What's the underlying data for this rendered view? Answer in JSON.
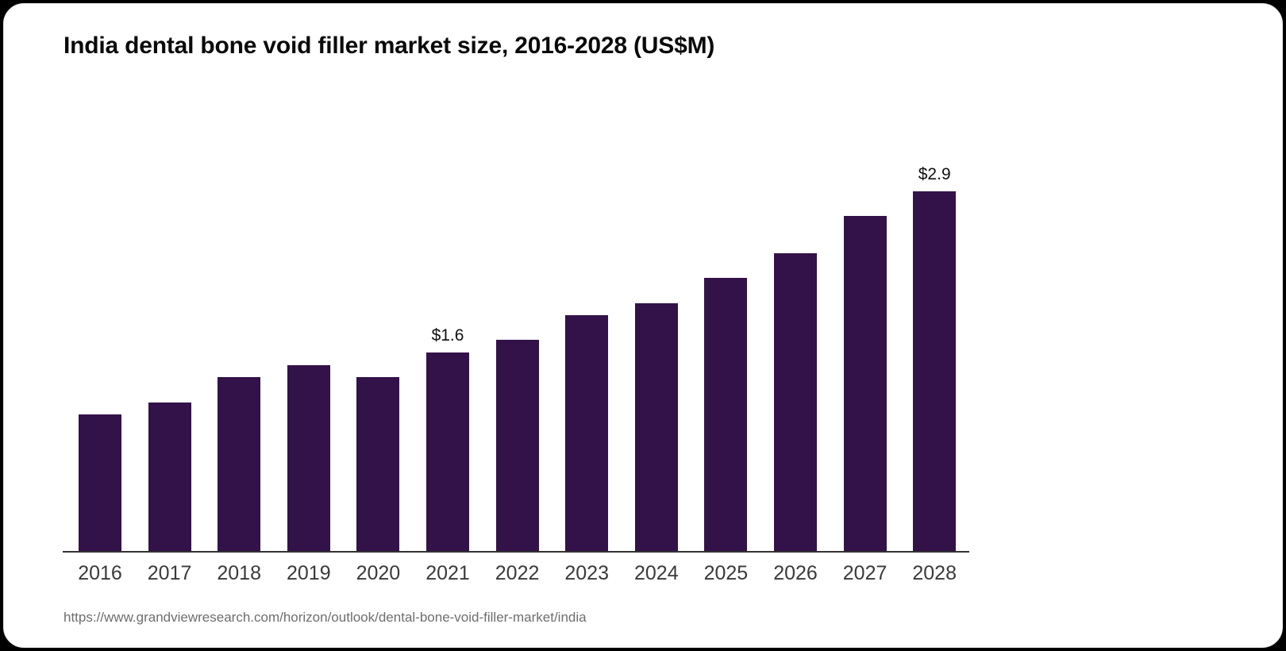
{
  "window": {
    "background_color": "#000000",
    "card_background_color": "#ffffff"
  },
  "header": {
    "title": "India dental bone void filler market size, 2016-2028 (US$M)"
  },
  "footer": {
    "source_url": "https://www.grandviewresearch.com/horizon/outlook/dental-bone-void-filler-market/india"
  },
  "chart_data": {
    "type": "bar",
    "title": "India dental bone void filler market size, 2016-2028 (US$M)",
    "categories": [
      "2016",
      "2017",
      "2018",
      "2019",
      "2020",
      "2021",
      "2022",
      "2023",
      "2024",
      "2025",
      "2026",
      "2027",
      "2028"
    ],
    "values": [
      1.1,
      1.2,
      1.4,
      1.5,
      1.4,
      1.6,
      1.7,
      1.9,
      2.0,
      2.2,
      2.4,
      2.7,
      2.9
    ],
    "unit": "US$M",
    "xlabel": "",
    "ylabel": "",
    "ylim": [
      0,
      3.1
    ],
    "grid": false,
    "legend": false,
    "data_labels": [
      {
        "category": "2021",
        "text": "$1.6"
      },
      {
        "category": "2028",
        "text": "$2.9"
      }
    ],
    "bar_color": "#331249",
    "axis_line_color": "#333333",
    "tick_label_color": "#3a3a3a",
    "value_label_color": "#101010"
  }
}
